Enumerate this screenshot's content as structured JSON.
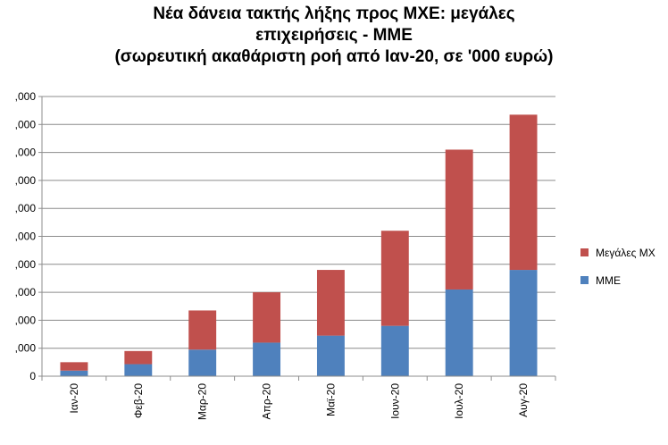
{
  "chart_data": {
    "type": "bar",
    "stacked": true,
    "title_lines": [
      "Νέα δάνεια τακτής λήξης προς ΜΧΕ: μεγάλες",
      "επιχειρήσεις - ΜΜΕ",
      "(σωρευτική ακαθάριστη ροή από Ιαν-20, σε '000 ευρώ)"
    ],
    "categories": [
      "Ιαν-20",
      "Φεβ-20",
      "Μαρ-20",
      "Απρ-20",
      "Μαϊ-20",
      "Ιουν-20",
      "Ιουλ-20",
      "Αυγ-20"
    ],
    "series": [
      {
        "name": "ΜΜΕ",
        "color": "#4f81bd",
        "values": [
          200000,
          430000,
          950000,
          1200000,
          1450000,
          1800000,
          3100000,
          3800000
        ]
      },
      {
        "name": "Μεγάλες ΜΧ",
        "color": "#c0504d",
        "values": [
          300000,
          470000,
          1400000,
          1800000,
          2350000,
          3400000,
          5000000,
          5550000
        ]
      }
    ],
    "y_ticks": [
      "0",
      ",000",
      ",000",
      ",000",
      ",000",
      ",000",
      ",000",
      ",000",
      ",000",
      ",000",
      ",000"
    ],
    "ylim": [
      0,
      10000000
    ],
    "grid": true,
    "legend_position": "right"
  }
}
